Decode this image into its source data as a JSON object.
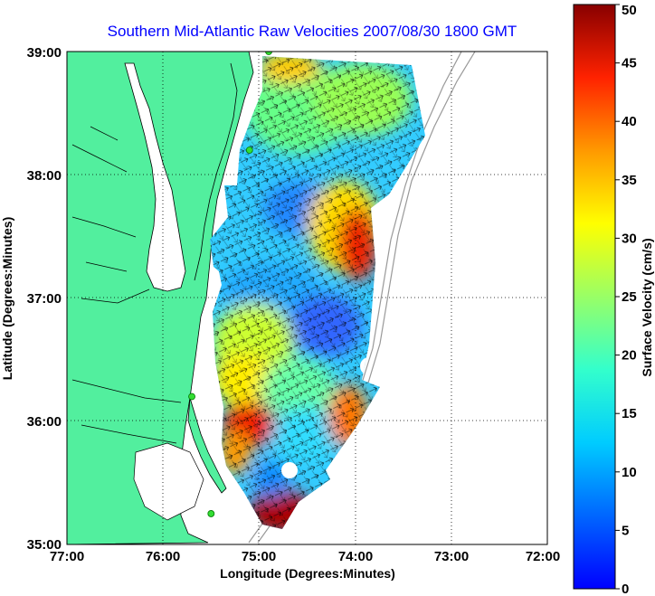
{
  "title": "Southern Mid-Atlantic Raw Velocities 2007/08/30 1800 GMT",
  "xlabel": "Longitude (Degrees:Minutes)",
  "ylabel": "Latitude (Degrees:Minutes)",
  "colorbar_label": "Surface Velocity (cm/s)",
  "x_ticks": [
    "77:00",
    "76:00",
    "75:00",
    "74:00",
    "73:00",
    "72:00"
  ],
  "y_ticks": [
    "35:00",
    "36:00",
    "37:00",
    "38:00",
    "39:00"
  ],
  "colorbar_ticks": [
    "0",
    "5",
    "10",
    "15",
    "20",
    "25",
    "30",
    "35",
    "40",
    "45",
    "50"
  ],
  "colors": {
    "land": "#52ef9e",
    "water": "#ffffff",
    "title": "#0000ff",
    "station": "#33dd33",
    "bathymetry": "#999999"
  },
  "chart_data": {
    "type": "heatmap",
    "title": "Southern Mid-Atlantic Raw Velocities 2007/08/30 1800 GMT",
    "xlabel": "Longitude (Degrees:Minutes)",
    "ylabel": "Latitude (Degrees:Minutes)",
    "xlim": [
      -77,
      -72
    ],
    "ylim": [
      35,
      39
    ],
    "colorbar": {
      "label": "Surface Velocity (cm/s)",
      "range": [
        0,
        50
      ],
      "colormap": "jet"
    },
    "grid": true,
    "stations": [
      {
        "lon": -74.9,
        "lat": 39.0
      },
      {
        "lon": -75.1,
        "lat": 38.2
      },
      {
        "lon": -75.7,
        "lat": 36.2
      },
      {
        "lon": -75.5,
        "lat": 35.25
      }
    ],
    "velocity_hotspots": [
      {
        "lon": -74.0,
        "lat": 37.3,
        "speed": 45
      },
      {
        "lon": -75.2,
        "lat": 35.9,
        "speed": 42
      },
      {
        "lon": -74.9,
        "lat": 35.3,
        "speed": 50
      },
      {
        "lon": -74.9,
        "lat": 38.9,
        "speed": 35
      },
      {
        "lon": -75.1,
        "lat": 36.5,
        "speed": 28
      }
    ]
  }
}
